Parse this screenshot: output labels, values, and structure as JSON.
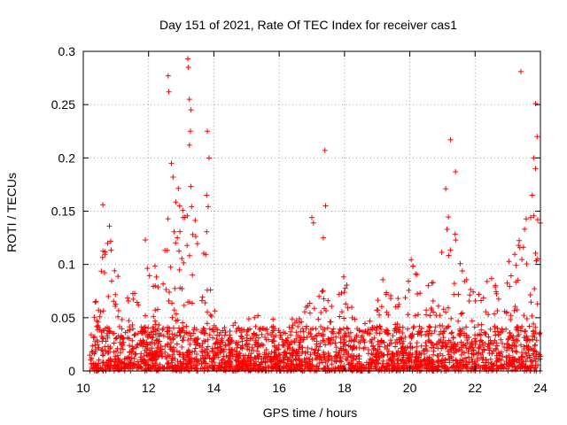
{
  "chart_data": {
    "type": "scatter",
    "title": "Day 151 of 2021, Rate Of TEC Index for receiver cas1",
    "xlabel": "GPS time / hours",
    "ylabel": "ROTI / TECUs",
    "xlim": [
      10,
      24
    ],
    "ylim": [
      0,
      0.3
    ],
    "xticks": [
      10,
      12,
      14,
      16,
      18,
      20,
      22,
      24
    ],
    "yticks": [
      0,
      0.05,
      0.1,
      0.15,
      0.2,
      0.25,
      0.3
    ],
    "marker": "+",
    "color": "#ff0000",
    "grid": true,
    "background_band": {
      "from": 10.2,
      "to": 24,
      "typical_max": 0.04
    },
    "envelope": [
      [
        10.2,
        0.05
      ],
      [
        10.4,
        0.07
      ],
      [
        10.6,
        0.12
      ],
      [
        10.8,
        0.13
      ],
      [
        11.0,
        0.09
      ],
      [
        11.2,
        0.1
      ],
      [
        11.4,
        0.09
      ],
      [
        11.6,
        0.11
      ],
      [
        11.8,
        0.09
      ],
      [
        12.0,
        0.12
      ],
      [
        12.2,
        0.1
      ],
      [
        12.4,
        0.12
      ],
      [
        12.6,
        0.15
      ],
      [
        12.8,
        0.19
      ],
      [
        13.0,
        0.16
      ],
      [
        13.2,
        0.25
      ],
      [
        13.4,
        0.17
      ],
      [
        13.6,
        0.12
      ],
      [
        13.8,
        0.2
      ],
      [
        14.0,
        0.06
      ],
      [
        14.4,
        0.04
      ],
      [
        14.8,
        0.05
      ],
      [
        15.2,
        0.05
      ],
      [
        15.6,
        0.06
      ],
      [
        16.0,
        0.04
      ],
      [
        16.4,
        0.05
      ],
      [
        16.8,
        0.06
      ],
      [
        17.2,
        0.08
      ],
      [
        17.6,
        0.08
      ],
      [
        18.0,
        0.09
      ],
      [
        18.4,
        0.04
      ],
      [
        18.8,
        0.05
      ],
      [
        19.2,
        0.1
      ],
      [
        19.6,
        0.07
      ],
      [
        20.0,
        0.11
      ],
      [
        20.4,
        0.08
      ],
      [
        20.8,
        0.1
      ],
      [
        21.2,
        0.16
      ],
      [
        21.6,
        0.1
      ],
      [
        22.0,
        0.07
      ],
      [
        22.4,
        0.09
      ],
      [
        22.8,
        0.08
      ],
      [
        23.2,
        0.12
      ],
      [
        23.6,
        0.15
      ],
      [
        23.9,
        0.18
      ]
    ],
    "outliers": [
      [
        10.6,
        0.156
      ],
      [
        10.8,
        0.136
      ],
      [
        11.9,
        0.123
      ],
      [
        12.6,
        0.277
      ],
      [
        12.62,
        0.262
      ],
      [
        12.7,
        0.195
      ],
      [
        12.75,
        0.182
      ],
      [
        13.2,
        0.293
      ],
      [
        13.22,
        0.285
      ],
      [
        13.25,
        0.255
      ],
      [
        13.3,
        0.245
      ],
      [
        13.28,
        0.225
      ],
      [
        13.25,
        0.212
      ],
      [
        13.8,
        0.225
      ],
      [
        13.85,
        0.2
      ],
      [
        13.78,
        0.165
      ],
      [
        17.0,
        0.144
      ],
      [
        17.05,
        0.139
      ],
      [
        17.4,
        0.207
      ],
      [
        17.42,
        0.155
      ],
      [
        17.35,
        0.125
      ],
      [
        21.25,
        0.217
      ],
      [
        21.4,
        0.187
      ],
      [
        21.1,
        0.171
      ],
      [
        23.4,
        0.281
      ],
      [
        23.85,
        0.251
      ],
      [
        23.9,
        0.22
      ],
      [
        23.8,
        0.2
      ],
      [
        23.85,
        0.19
      ],
      [
        23.75,
        0.165
      ],
      [
        23.7,
        0.144
      ]
    ]
  }
}
